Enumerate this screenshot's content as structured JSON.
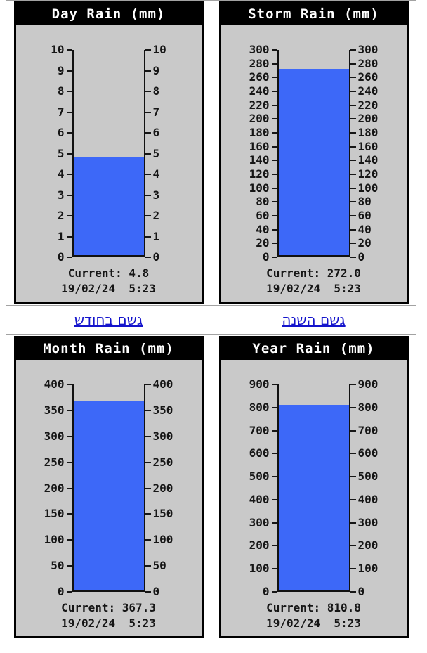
{
  "colors": {
    "bar_fill": "#3d68f8",
    "panel_bg": "#c9c9c9",
    "panel_border": "#000000",
    "title_bg": "#000000",
    "title_fg": "#ffffff",
    "link": "#1414cc",
    "table_border": "#a2a2a2"
  },
  "links_row": {
    "month_link_label": "גשם בחודש",
    "year_link_label": "גשם השנה"
  },
  "gauges": [
    {
      "key": "day",
      "title": "Day Rain (mm)",
      "max": 10,
      "ticks": [
        10,
        9,
        8,
        7,
        6,
        5,
        4,
        3,
        2,
        1,
        0
      ],
      "current": 4.8,
      "current_label": "Current: 4.8",
      "timestamp": "19/02/24  5:23"
    },
    {
      "key": "storm",
      "title": "Storm Rain (mm)",
      "max": 300,
      "ticks": [
        300,
        280,
        260,
        240,
        220,
        200,
        180,
        160,
        140,
        120,
        100,
        80,
        60,
        40,
        20,
        0
      ],
      "current": 272.0,
      "current_label": "Current: 272.0",
      "timestamp": "19/02/24  5:23"
    },
    {
      "key": "month",
      "title": "Month Rain (mm)",
      "max": 400,
      "ticks": [
        400,
        350,
        300,
        250,
        200,
        150,
        100,
        50,
        0
      ],
      "current": 367.3,
      "current_label": "Current: 367.3",
      "timestamp": "19/02/24  5:23"
    },
    {
      "key": "year",
      "title": "Year Rain (mm)",
      "max": 900,
      "ticks": [
        900,
        800,
        700,
        600,
        500,
        400,
        300,
        200,
        100,
        0
      ],
      "current": 810.8,
      "current_label": "Current: 810.8",
      "timestamp": "19/02/24  5:23"
    }
  ],
  "chart_data": [
    {
      "type": "bar",
      "title": "Day Rain (mm)",
      "categories": [
        "Day Rain"
      ],
      "values": [
        4.8
      ],
      "ylabel": "mm",
      "ylim": [
        0,
        10
      ],
      "yticks": [
        0,
        1,
        2,
        3,
        4,
        5,
        6,
        7,
        8,
        9,
        10
      ],
      "annotations": [
        "Current: 4.8",
        "19/02/24  5:23"
      ],
      "grid": false,
      "legend_position": "none"
    },
    {
      "type": "bar",
      "title": "Storm Rain (mm)",
      "categories": [
        "Storm Rain"
      ],
      "values": [
        272.0
      ],
      "ylabel": "mm",
      "ylim": [
        0,
        300
      ],
      "yticks": [
        0,
        20,
        40,
        60,
        80,
        100,
        120,
        140,
        160,
        180,
        200,
        220,
        240,
        260,
        280,
        300
      ],
      "annotations": [
        "Current: 272.0",
        "19/02/24  5:23"
      ],
      "grid": false,
      "legend_position": "none"
    },
    {
      "type": "bar",
      "title": "Month Rain (mm)",
      "categories": [
        "Month Rain"
      ],
      "values": [
        367.3
      ],
      "ylabel": "mm",
      "ylim": [
        0,
        400
      ],
      "yticks": [
        0,
        50,
        100,
        150,
        200,
        250,
        300,
        350,
        400
      ],
      "annotations": [
        "Current: 367.3",
        "19/02/24  5:23"
      ],
      "grid": false,
      "legend_position": "none"
    },
    {
      "type": "bar",
      "title": "Year Rain (mm)",
      "categories": [
        "Year Rain"
      ],
      "values": [
        810.8
      ],
      "ylabel": "mm",
      "ylim": [
        0,
        900
      ],
      "yticks": [
        0,
        100,
        200,
        300,
        400,
        500,
        600,
        700,
        800,
        900
      ],
      "annotations": [
        "Current: 810.8",
        "19/02/24  5:23"
      ],
      "grid": false,
      "legend_position": "none"
    }
  ]
}
